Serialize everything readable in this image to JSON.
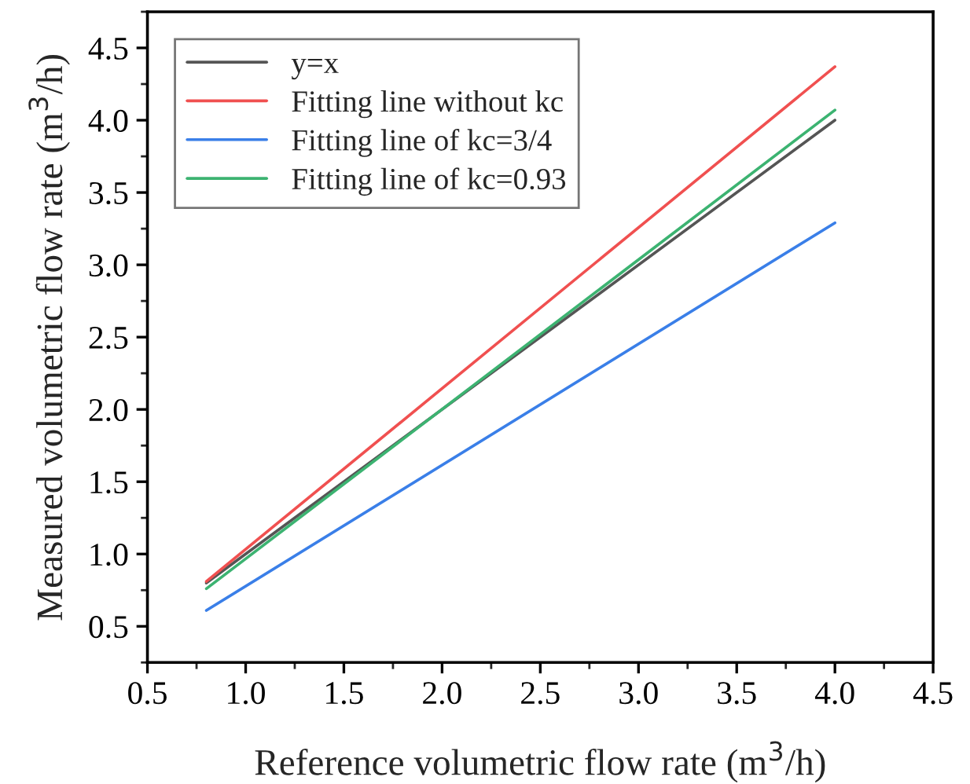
{
  "chart_data": {
    "type": "line",
    "xlabel": "Reference volumetric flow rate (m$^{3}$/h)",
    "ylabel": "Measured volumetric flow rate (m$^{3}$/h)",
    "xlim": [
      0.5,
      4.5
    ],
    "xticks": [
      {
        "value": 0.5,
        "label": "0.5"
      },
      {
        "value": 1.0,
        "label": "1.0"
      },
      {
        "value": 1.5,
        "label": "1.5"
      },
      {
        "value": 2.0,
        "label": "2.0"
      },
      {
        "value": 2.5,
        "label": "2.5"
      },
      {
        "value": 3.0,
        "label": "3.0"
      },
      {
        "value": 3.5,
        "label": "3.5"
      },
      {
        "value": 4.0,
        "label": "4.0"
      },
      {
        "value": 4.5,
        "label": "4.5"
      }
    ],
    "ylim": [
      0.25,
      4.75
    ],
    "yticks": [
      {
        "value": 0.5,
        "label": "0.5"
      },
      {
        "value": 1.0,
        "label": "1.0"
      },
      {
        "value": 1.5,
        "label": "1.5"
      },
      {
        "value": 2.0,
        "label": "2.0"
      },
      {
        "value": 2.5,
        "label": "2.5"
      },
      {
        "value": 3.0,
        "label": "3.0"
      },
      {
        "value": 3.5,
        "label": "3.5"
      },
      {
        "value": 4.0,
        "label": "4.0"
      },
      {
        "value": 4.5,
        "label": "4.5"
      }
    ],
    "x": [
      0.8,
      4.0
    ],
    "grid": false,
    "legend": "top left",
    "marker": "none",
    "line_style": "solid",
    "series": [
      {
        "name": "y=x",
        "color": "#555555",
        "values": [
          0.8,
          4.0
        ]
      },
      {
        "name": "Fitting line without kc",
        "color": "#f05050",
        "values": [
          0.81,
          4.37
        ]
      },
      {
        "name": "Fitting line of kc=3/4",
        "color": "#3a7fe8",
        "values": [
          0.61,
          3.29
        ]
      },
      {
        "name": "Fitting line of kc=0.93",
        "color": "#3cb371",
        "values": [
          0.76,
          4.07
        ]
      }
    ]
  }
}
